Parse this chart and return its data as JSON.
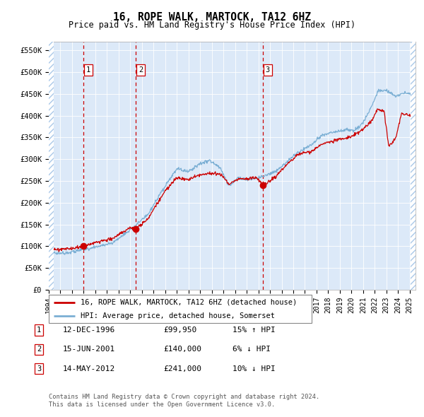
{
  "title": "16, ROPE WALK, MARTOCK, TA12 6HZ",
  "subtitle": "Price paid vs. HM Land Registry's House Price Index (HPI)",
  "ylim": [
    0,
    570000
  ],
  "yticks": [
    0,
    50000,
    100000,
    150000,
    200000,
    250000,
    300000,
    350000,
    400000,
    450000,
    500000,
    550000
  ],
  "ytick_labels": [
    "£0",
    "£50K",
    "£100K",
    "£150K",
    "£200K",
    "£250K",
    "£300K",
    "£350K",
    "£400K",
    "£450K",
    "£500K",
    "£550K"
  ],
  "plot_bg": "#dce9f8",
  "red_line_color": "#cc0000",
  "blue_line_color": "#7bafd4",
  "dashed_line_color": "#cc0000",
  "sales": [
    {
      "label": "1",
      "date": "12-DEC-1996",
      "price": 99950,
      "price_str": "£99,950",
      "hpi_pct": "15%",
      "hpi_dir": "↑",
      "year_x": 1996.95
    },
    {
      "label": "2",
      "date": "15-JUN-2001",
      "price": 140000,
      "price_str": "£140,000",
      "hpi_pct": "6%",
      "hpi_dir": "↓",
      "year_x": 2001.45
    },
    {
      "label": "3",
      "date": "14-MAY-2012",
      "price": 241000,
      "price_str": "£241,000",
      "hpi_pct": "10%",
      "hpi_dir": "↓",
      "year_x": 2012.37
    }
  ],
  "legend_line1": "16, ROPE WALK, MARTOCK, TA12 6HZ (detached house)",
  "legend_line2": "HPI: Average price, detached house, Somerset",
  "footer1": "Contains HM Land Registry data © Crown copyright and database right 2024.",
  "footer2": "This data is licensed under the Open Government Licence v3.0.",
  "xmin": 1994.0,
  "xmax": 2025.5,
  "xtick_years": [
    1994,
    1995,
    1996,
    1997,
    1998,
    1999,
    2000,
    2001,
    2002,
    2003,
    2004,
    2005,
    2006,
    2007,
    2008,
    2009,
    2010,
    2011,
    2012,
    2013,
    2014,
    2015,
    2016,
    2017,
    2018,
    2019,
    2020,
    2021,
    2022,
    2023,
    2024,
    2025
  ]
}
